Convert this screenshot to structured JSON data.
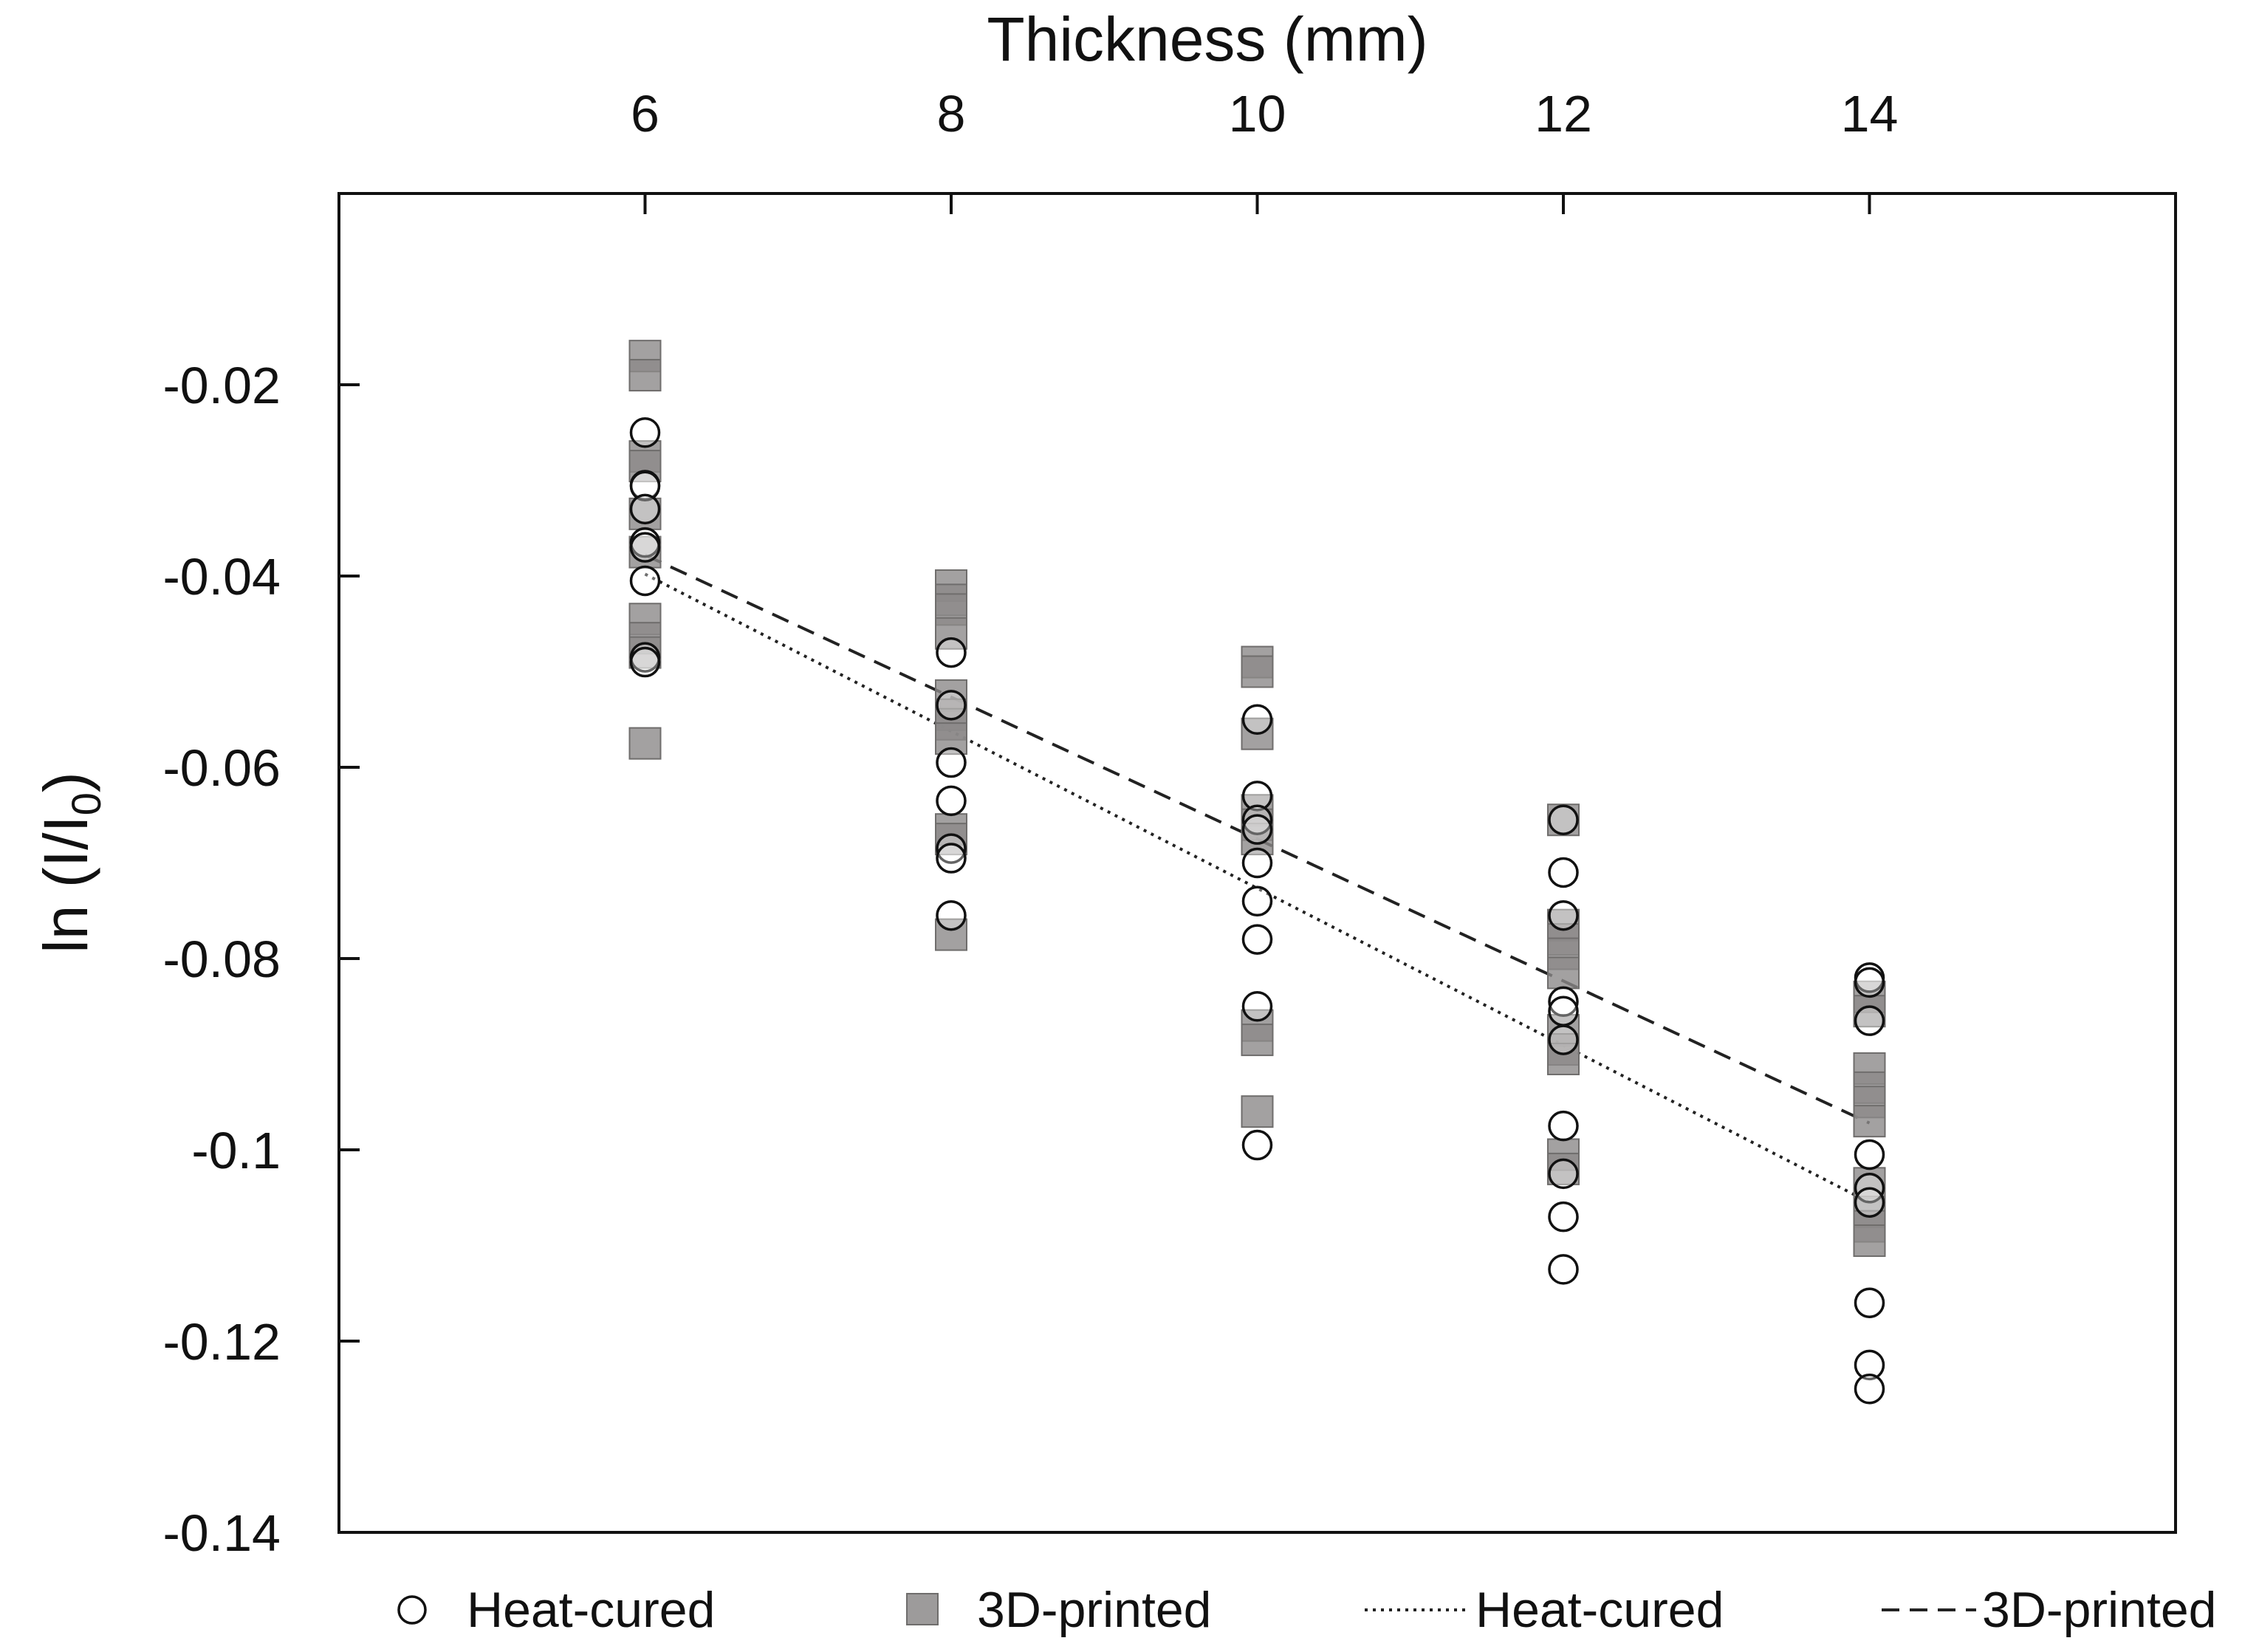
{
  "chart_data": {
    "type": "scatter",
    "title": "",
    "xlabel": "Thickness (mm)",
    "ylabel_parts": [
      "ln (I/I",
      "0",
      ")"
    ],
    "x_ticks": [
      6,
      8,
      10,
      12,
      14
    ],
    "y_ticks": [
      -0.02,
      -0.04,
      -0.06,
      -0.08,
      -0.1,
      -0.12,
      -0.14
    ],
    "y_tick_labels": [
      "-0.02",
      "-0.04",
      "-0.06",
      "-0.08",
      "-0.1",
      "-0.12",
      "-0.14"
    ],
    "xlim": [
      4,
      16
    ],
    "ylim": [
      -0.14,
      0.0
    ],
    "x_axis_position": "top",
    "grid": false,
    "legend_position": "bottom",
    "series": [
      {
        "name": "Heat-cured",
        "kind": "points",
        "marker": "circle-open",
        "color": "#111111",
        "points": [
          [
            6,
            -0.025
          ],
          [
            6,
            -0.0305
          ],
          [
            6,
            -0.0306
          ],
          [
            6,
            -0.033
          ],
          [
            6,
            -0.0365
          ],
          [
            6,
            -0.037
          ],
          [
            6,
            -0.0405
          ],
          [
            6,
            -0.0485
          ],
          [
            6,
            -0.049
          ],
          [
            8,
            -0.048
          ],
          [
            8,
            -0.0535
          ],
          [
            8,
            -0.0595
          ],
          [
            8,
            -0.0635
          ],
          [
            8,
            -0.0685
          ],
          [
            8,
            -0.0695
          ],
          [
            8,
            -0.0755
          ],
          [
            10,
            -0.055
          ],
          [
            10,
            -0.063
          ],
          [
            10,
            -0.0655
          ],
          [
            10,
            -0.0665
          ],
          [
            10,
            -0.07
          ],
          [
            10,
            -0.074
          ],
          [
            10,
            -0.078
          ],
          [
            10,
            -0.085
          ],
          [
            10,
            -0.0995
          ],
          [
            12,
            -0.0655
          ],
          [
            12,
            -0.071
          ],
          [
            12,
            -0.0755
          ],
          [
            12,
            -0.0845
          ],
          [
            12,
            -0.0855
          ],
          [
            12,
            -0.0885
          ],
          [
            12,
            -0.0975
          ],
          [
            12,
            -0.1025
          ],
          [
            12,
            -0.107
          ],
          [
            12,
            -0.1125
          ],
          [
            14,
            -0.082
          ],
          [
            14,
            -0.0825
          ],
          [
            14,
            -0.0865
          ],
          [
            14,
            -0.1005
          ],
          [
            14,
            -0.104
          ],
          [
            14,
            -0.1055
          ],
          [
            14,
            -0.116
          ],
          [
            14,
            -0.1225
          ],
          [
            14,
            -0.125
          ]
        ]
      },
      {
        "name": "3D-printed",
        "kind": "points",
        "marker": "square-filled",
        "color": "#8c8a89",
        "points": [
          [
            6,
            -0.017
          ],
          [
            6,
            -0.019
          ],
          [
            6,
            -0.0275
          ],
          [
            6,
            -0.0285
          ],
          [
            6,
            -0.0335
          ],
          [
            6,
            -0.0375
          ],
          [
            6,
            -0.0445
          ],
          [
            6,
            -0.0465
          ],
          [
            6,
            -0.048
          ],
          [
            6,
            -0.0575
          ],
          [
            8,
            -0.041
          ],
          [
            8,
            -0.0425
          ],
          [
            8,
            -0.0435
          ],
          [
            8,
            -0.046
          ],
          [
            8,
            -0.0525
          ],
          [
            8,
            -0.0545
          ],
          [
            8,
            -0.0555
          ],
          [
            8,
            -0.057
          ],
          [
            8,
            -0.0665
          ],
          [
            8,
            -0.0675
          ],
          [
            8,
            -0.0775
          ],
          [
            10,
            -0.049
          ],
          [
            10,
            -0.05
          ],
          [
            10,
            -0.0565
          ],
          [
            10,
            -0.0645
          ],
          [
            10,
            -0.066
          ],
          [
            10,
            -0.0675
          ],
          [
            10,
            -0.087
          ],
          [
            10,
            -0.0885
          ],
          [
            10,
            -0.096
          ],
          [
            12,
            -0.0655
          ],
          [
            12,
            -0.0765
          ],
          [
            12,
            -0.078
          ],
          [
            12,
            -0.0795
          ],
          [
            12,
            -0.0815
          ],
          [
            12,
            -0.0875
          ],
          [
            12,
            -0.0895
          ],
          [
            12,
            -0.0905
          ],
          [
            12,
            -0.1005
          ],
          [
            12,
            -0.102
          ],
          [
            14,
            -0.084
          ],
          [
            14,
            -0.0855
          ],
          [
            14,
            -0.0915
          ],
          [
            14,
            -0.0935
          ],
          [
            14,
            -0.095
          ],
          [
            14,
            -0.097
          ],
          [
            14,
            -0.1035
          ],
          [
            14,
            -0.1065
          ],
          [
            14,
            -0.108
          ],
          [
            14,
            -0.1095
          ]
        ]
      },
      {
        "name": "Heat-cured",
        "kind": "line",
        "dash": "dotted",
        "color": "#222222",
        "points": [
          [
            6,
            -0.0398
          ],
          [
            14,
            -0.1055
          ]
        ]
      },
      {
        "name": "3D-printed",
        "kind": "line",
        "dash": "dashed",
        "color": "#222222",
        "points": [
          [
            6,
            -0.0378
          ],
          [
            14,
            -0.0972
          ]
        ]
      }
    ]
  }
}
